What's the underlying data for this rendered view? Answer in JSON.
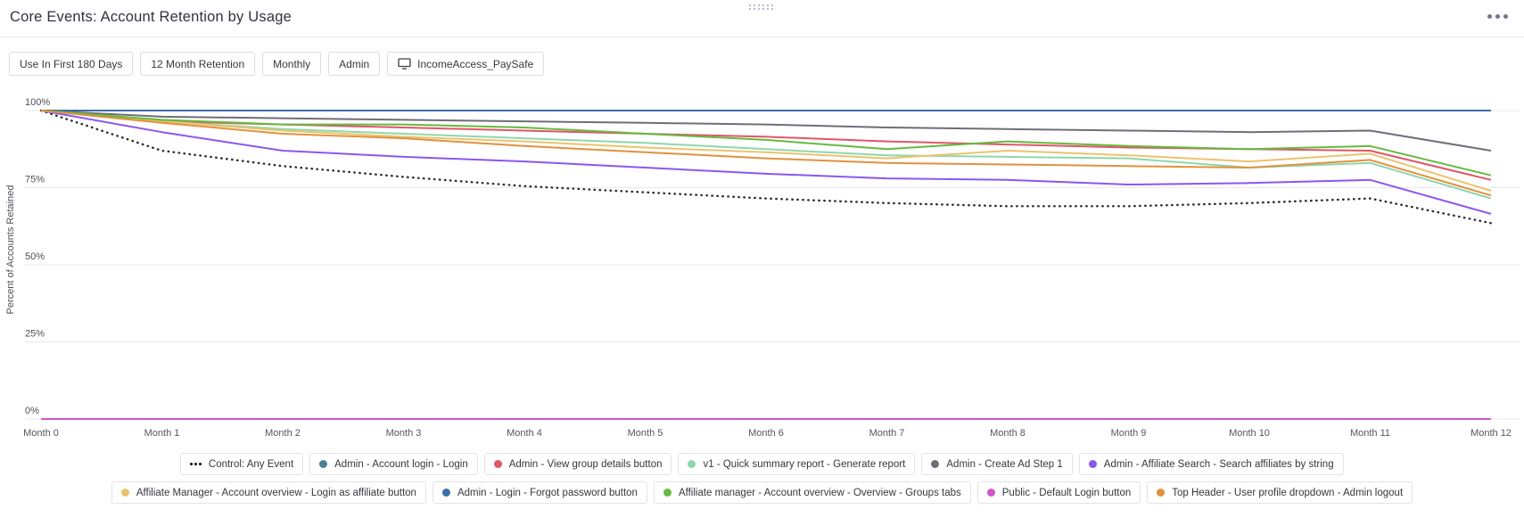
{
  "header": {
    "title": "Core Events: Account Retention by Usage",
    "drag_handle_icon": "drag-handle-icon",
    "more_options_icon": "ellipsis-icon"
  },
  "filters": [
    {
      "label": "Use In First 180 Days"
    },
    {
      "label": "12 Month Retention"
    },
    {
      "label": "Monthly"
    },
    {
      "label": "Admin"
    },
    {
      "label": "IncomeAccess_PaySafe",
      "icon": "monitor-icon"
    }
  ],
  "chart_data": {
    "type": "line",
    "title": "Core Events: Account Retention by Usage",
    "xlabel": "",
    "ylabel": "Percent of Accounts Retained",
    "ylim": [
      0,
      100
    ],
    "grid": true,
    "legend_position": "bottom",
    "yticks": [
      {
        "label": "100%",
        "value": 100
      },
      {
        "label": "75%",
        "value": 75
      },
      {
        "label": "50%",
        "value": 50
      },
      {
        "label": "25%",
        "value": 25
      },
      {
        "label": "0%",
        "value": 0
      }
    ],
    "categories": [
      "Month 0",
      "Month 1",
      "Month 2",
      "Month 3",
      "Month 4",
      "Month 5",
      "Month 6",
      "Month 7",
      "Month 8",
      "Month 9",
      "Month 10",
      "Month 11",
      "Month 12"
    ],
    "series": [
      {
        "name": "Control: Any Event",
        "color": "#2b2b30",
        "style": "dotted",
        "values": [
          100,
          87,
          82,
          78.5,
          75.5,
          73.5,
          71.5,
          70,
          69,
          69,
          70,
          71.5,
          63.5
        ]
      },
      {
        "name": "Admin - Account login - Login",
        "color": "#4c7e95",
        "style": "solid",
        "values": [
          100,
          100,
          100,
          100,
          100,
          100,
          100,
          100,
          100,
          100,
          100,
          100,
          100
        ]
      },
      {
        "name": "Admin - View group details button",
        "color": "#e25568",
        "style": "solid",
        "values": [
          100,
          96.5,
          95.5,
          94.5,
          93.5,
          92.5,
          91.5,
          90,
          89,
          88,
          87.5,
          87,
          77.5
        ]
      },
      {
        "name": "v1 - Quick summary report - Generate report",
        "color": "#8ed7ab",
        "style": "solid",
        "values": [
          100,
          96.5,
          94,
          92.5,
          91,
          89.5,
          87.5,
          85.5,
          85,
          84.5,
          81.5,
          83,
          71.5
        ]
      },
      {
        "name": "Admin - Create Ad Step 1",
        "color": "#6e6e78",
        "style": "solid",
        "values": [
          100,
          98,
          97.5,
          97,
          96.5,
          96,
          95.5,
          94.5,
          94,
          93.5,
          93,
          93.5,
          87
        ]
      },
      {
        "name": "Admin - Affiliate Search - Search affiliates by string",
        "color": "#8a57f0",
        "style": "solid",
        "values": [
          100,
          93,
          87,
          85,
          83.5,
          81.5,
          79.5,
          78,
          77.5,
          76,
          76.5,
          77.5,
          66.5
        ]
      },
      {
        "name": "Affiliate Manager - Account overview - Login as affiliate button",
        "color": "#eac36e",
        "style": "solid",
        "values": [
          100,
          96.5,
          93.5,
          91.5,
          90,
          88,
          86.5,
          84.5,
          87,
          85.5,
          83.5,
          86,
          74
        ]
      },
      {
        "name": "Admin - Login - Forgot password button",
        "color": "#3e6fa6",
        "style": "solid",
        "values": [
          100,
          100,
          100,
          100,
          100,
          100,
          100,
          100,
          100,
          100,
          100,
          100,
          100
        ]
      },
      {
        "name": "Affiliate manager - Account overview - Overview - Groups tabs",
        "color": "#63bb3d",
        "style": "solid",
        "values": [
          100,
          97,
          95.5,
          95.5,
          94.5,
          92.5,
          90.5,
          87.5,
          90,
          88.5,
          87.5,
          88.5,
          79
        ]
      },
      {
        "name": "Public - Default Login button",
        "color": "#d355c8",
        "style": "solid",
        "values": [
          0,
          0,
          0,
          0,
          0,
          0,
          0,
          0,
          0,
          0,
          0,
          0,
          0
        ]
      },
      {
        "name": "Top Header - User profile dropdown - Admin logout",
        "color": "#e2913d",
        "style": "solid",
        "values": [
          100,
          96,
          92.5,
          91,
          88.5,
          86.5,
          84.5,
          83,
          82.5,
          82,
          81.5,
          84,
          72.5
        ]
      }
    ],
    "legend_rows": [
      [
        0,
        1,
        2,
        3,
        4,
        5
      ],
      [
        6,
        7,
        8,
        9,
        10
      ]
    ]
  }
}
